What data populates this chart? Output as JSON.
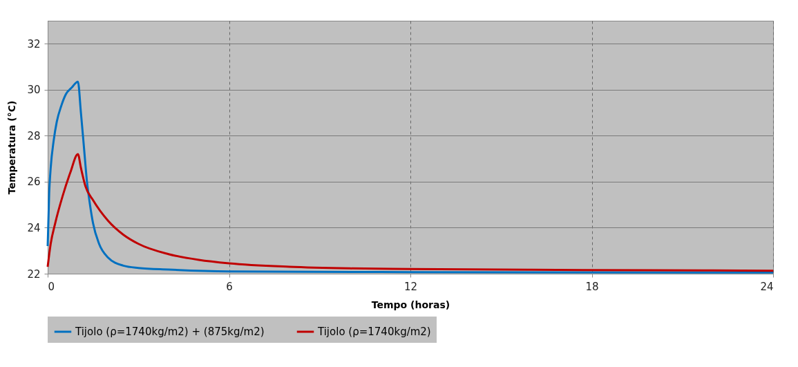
{
  "chart_data": {
    "type": "line",
    "xlabel": "Tempo (horas)",
    "ylabel": "Temperatura (°C)",
    "xlim": [
      0,
      24
    ],
    "xticks": [
      0,
      6,
      12,
      18,
      24
    ],
    "ylim": [
      22,
      33
    ],
    "yticks": [
      22,
      24,
      26,
      28,
      30,
      32
    ],
    "grid": true,
    "legend": "bottom",
    "line_style": "solid",
    "marker": "none",
    "series": [
      {
        "name": "Tijolo (ρ=1740kg/m2) + (875kg/m2)",
        "color": "#0070c0",
        "x": [
          0,
          0.05,
          0.1,
          0.2,
          0.3,
          0.45,
          0.6,
          0.8,
          1.0,
          1.1,
          1.2,
          1.3,
          1.4,
          1.5,
          1.7,
          2,
          2.5,
          3,
          4,
          6,
          12,
          24
        ],
        "values": [
          23.2,
          25.5,
          26.6,
          27.8,
          28.6,
          29.3,
          29.8,
          30.1,
          30.35,
          29,
          27.5,
          26,
          25,
          24.2,
          23.3,
          22.7,
          22.35,
          22.25,
          22.18,
          22.1,
          22.07,
          22.05
        ]
      },
      {
        "name": "Tijolo (ρ=1740kg/m2)",
        "color": "#c00000",
        "x": [
          0,
          0.1,
          0.25,
          0.5,
          0.75,
          1,
          1.1,
          1.25,
          1.5,
          2,
          2.5,
          3,
          4,
          5,
          6,
          8,
          10,
          12,
          16,
          20,
          24
        ],
        "values": [
          22.3,
          23.3,
          24.2,
          25.4,
          26.4,
          27.2,
          26.6,
          25.8,
          25.2,
          24.3,
          23.7,
          23.3,
          22.85,
          22.6,
          22.45,
          22.3,
          22.23,
          22.2,
          22.17,
          22.15,
          22.13
        ]
      }
    ]
  }
}
